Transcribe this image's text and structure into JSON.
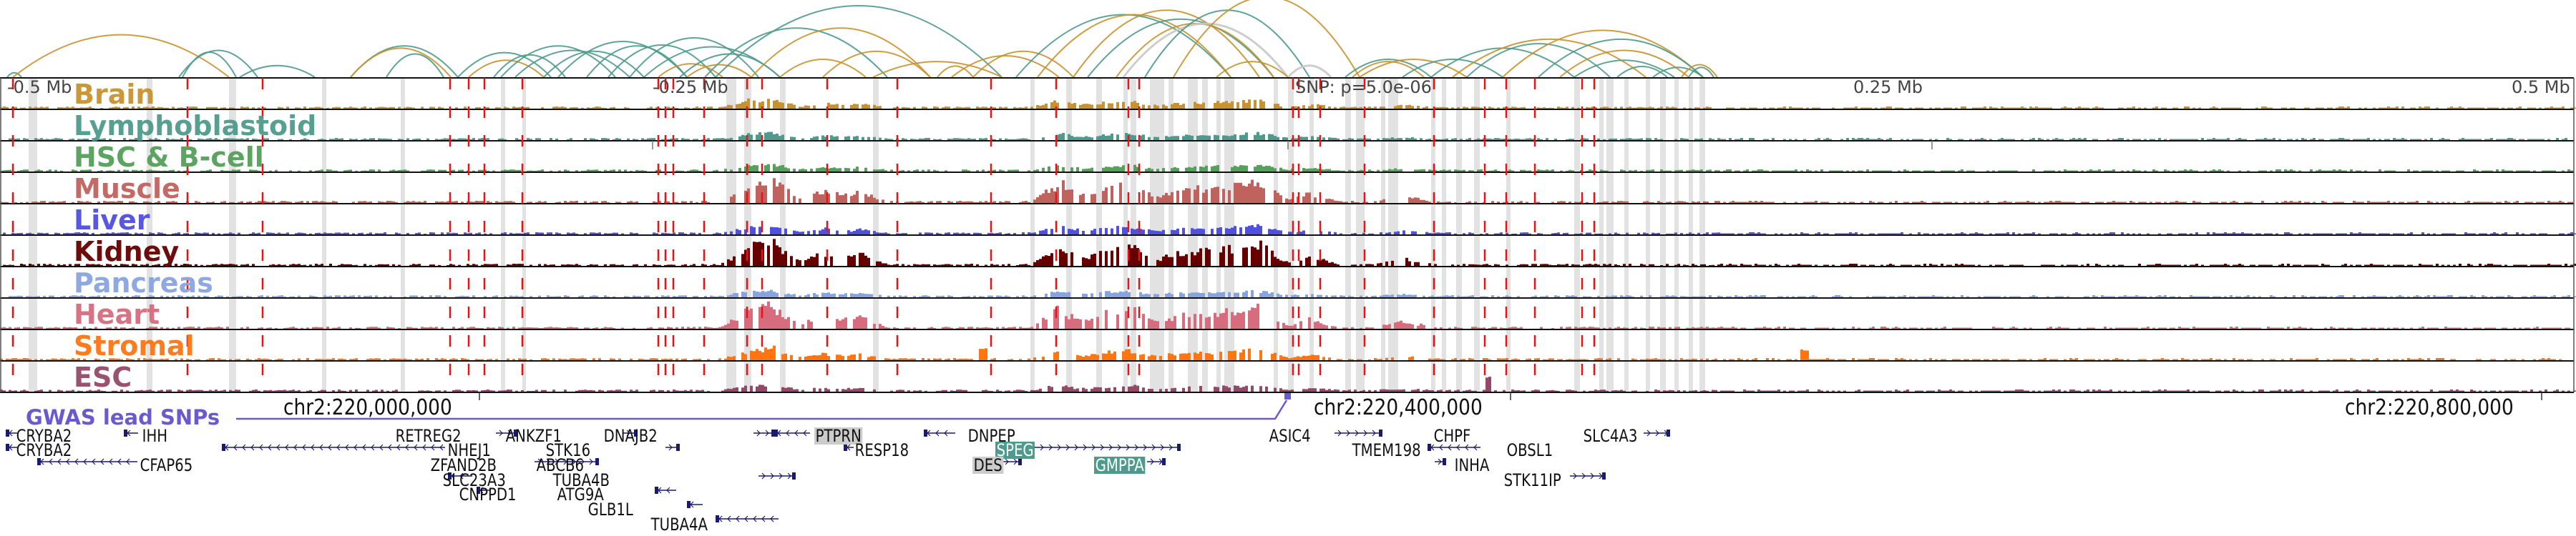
{
  "scale_labels": [
    "-0.5 Mb",
    "-0.25 Mb",
    "SNP: p=5.0e-06",
    "0.25 Mb",
    "0.5 Mb"
  ],
  "tracks": [
    {
      "name": "Brain",
      "color": "#c8922f"
    },
    {
      "name": "Lymphoblastoid",
      "color": "#4e9a8c"
    },
    {
      "name": "HSC & B-cell",
      "color": "#55a05a"
    },
    {
      "name": "Muscle",
      "color": "#c0625e"
    },
    {
      "name": "Liver",
      "color": "#4f4fe0"
    },
    {
      "name": "Kidney",
      "color": "#660000"
    },
    {
      "name": "Pancreas",
      "color": "#88a4e0"
    },
    {
      "name": "Heart",
      "color": "#d66c7e"
    },
    {
      "name": "Stromal",
      "color": "#ff7512"
    },
    {
      "name": "ESC",
      "color": "#934a68"
    }
  ],
  "coordinates": [
    "chr2:220,000,000",
    "chr2:220,400,000",
    "chr2:220,800,000"
  ],
  "gwas": {
    "label": "GWAS lead SNPs",
    "color": "#6a5acd"
  },
  "genes": [
    {
      "name": "CRYBA2",
      "hl": ""
    },
    {
      "name": "CRYBA2",
      "hl": ""
    },
    {
      "name": "CFAP65",
      "hl": ""
    },
    {
      "name": "IHH",
      "hl": ""
    },
    {
      "name": "RETREG2",
      "hl": ""
    },
    {
      "name": "NHEJ1",
      "hl": ""
    },
    {
      "name": "ZFAND2B",
      "hl": ""
    },
    {
      "name": "SLC23A3",
      "hl": ""
    },
    {
      "name": "CNPPD1",
      "hl": ""
    },
    {
      "name": "ANKZF1",
      "hl": ""
    },
    {
      "name": "STK16",
      "hl": ""
    },
    {
      "name": "ABCB6",
      "hl": ""
    },
    {
      "name": "TUBA4B",
      "hl": ""
    },
    {
      "name": "ATG9A",
      "hl": ""
    },
    {
      "name": "GLB1L",
      "hl": ""
    },
    {
      "name": "TUBA4A",
      "hl": ""
    },
    {
      "name": "DNAJB2",
      "hl": ""
    },
    {
      "name": "PTPRN",
      "hl": "gray"
    },
    {
      "name": "RESP18",
      "hl": ""
    },
    {
      "name": "DNPEP",
      "hl": ""
    },
    {
      "name": "SPEG",
      "hl": "teal"
    },
    {
      "name": "DES",
      "hl": "gray"
    },
    {
      "name": "GMPPA",
      "hl": "teal"
    },
    {
      "name": "ASIC4",
      "hl": ""
    },
    {
      "name": "CHPF",
      "hl": ""
    },
    {
      "name": "TMEM198",
      "hl": ""
    },
    {
      "name": "OBSL1",
      "hl": ""
    },
    {
      "name": "INHA",
      "hl": ""
    },
    {
      "name": "STK11IP",
      "hl": ""
    },
    {
      "name": "SLC4A3",
      "hl": ""
    }
  ],
  "colors": {
    "snp_line": "#ee1111",
    "highlight_column": "#e2e2e2",
    "gene_glyph": "#1a1a6e",
    "arc_teal": "#4e9a8c",
    "arc_gold": "#c8922f",
    "arc_gray": "#c8c8c8"
  }
}
